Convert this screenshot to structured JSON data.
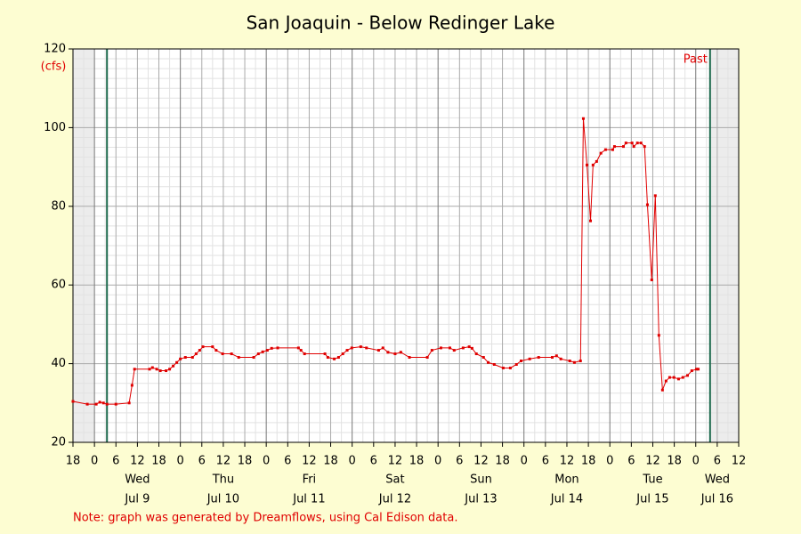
{
  "chart_data": {
    "type": "line",
    "title": "San Joaquin - Below Redinger Lake",
    "ylabel": "(cfs)",
    "note": "Note: graph was generated by Dreamflows, using Cal Edison data.",
    "past_label": "Past",
    "x": [
      -6,
      -2,
      0.5,
      1.5,
      2.5,
      3.5,
      6,
      9.7,
      10.5,
      11.2,
      15.4,
      16.2,
      17.4,
      18.4,
      20,
      21,
      22,
      23,
      24,
      25.4,
      27.4,
      28.4,
      29.4,
      30.3,
      33,
      34,
      35.8,
      38.3,
      40.3,
      44.5,
      45.8,
      47,
      48.3,
      49.5,
      51.2,
      57,
      57.7,
      58.7,
      64.4,
      65.2,
      67,
      68.2,
      69.4,
      70.6,
      71.9,
      74.4,
      76,
      79.4,
      80.6,
      82,
      84,
      85.6,
      88,
      93,
      94.3,
      96.8,
      99.3,
      100.5,
      103,
      104.7,
      105.5,
      106.7,
      108.7,
      110,
      111.7,
      114.2,
      116.2,
      117.9,
      119.2,
      121.6,
      124.1,
      127.9,
      129.1,
      130.3,
      132.8,
      134.1,
      135.8,
      136.6,
      137.6,
      138.6,
      139.3,
      140.3,
      141.5,
      142.8,
      144.8,
      145.3,
      147.8,
      148.5,
      150.2,
      150.7,
      151.7,
      152.7,
      153.7,
      154.5,
      155.7,
      156.7,
      157.7,
      158.7,
      159.7,
      160.7,
      161.9,
      163.2,
      164.4,
      165.7,
      166.9,
      168.2,
      168.7
    ],
    "series": [
      {
        "name": "Flow",
        "color": "#e00000",
        "values": [
          30.4,
          29.7,
          29.7,
          30.2,
          30,
          29.7,
          29.7,
          30,
          34.5,
          38.6,
          38.6,
          39,
          38.6,
          38.2,
          38.2,
          38.6,
          39.4,
          40.3,
          41.2,
          41.6,
          41.6,
          42.5,
          43.4,
          44.3,
          44.3,
          43.4,
          42.5,
          42.5,
          41.6,
          41.6,
          42.5,
          43,
          43.4,
          43.9,
          44,
          44,
          43.4,
          42.5,
          42.5,
          41.6,
          41.2,
          41.6,
          42.5,
          43.4,
          44,
          44.3,
          44,
          43.4,
          44,
          42.9,
          42.5,
          42.9,
          41.6,
          41.6,
          43.4,
          44,
          44,
          43.4,
          44,
          44.3,
          43.9,
          42.5,
          41.6,
          40.3,
          39.8,
          38.9,
          38.9,
          39.8,
          40.7,
          41.2,
          41.6,
          41.6,
          42,
          41.2,
          40.7,
          40.3,
          40.7,
          102.3,
          90.5,
          76.3,
          90.5,
          91.4,
          93.5,
          94.4,
          94.4,
          95.2,
          95.2,
          96.1,
          96.1,
          95.2,
          96.1,
          96.1,
          95.2,
          80.4,
          61.3,
          82.7,
          47.2,
          33.3,
          35.6,
          36.5,
          36.5,
          36.1,
          36.5,
          37,
          38.2,
          38.6,
          38.6
        ]
      }
    ],
    "xlim": [
      -6,
      180
    ],
    "ylim": [
      20,
      120
    ],
    "yticks": [
      20,
      40,
      60,
      80,
      100,
      120
    ],
    "xticks": [
      {
        "value": -6,
        "label": "18"
      },
      {
        "value": 0,
        "label": "0"
      },
      {
        "value": 6,
        "label": "6"
      },
      {
        "value": 12,
        "label": "12"
      },
      {
        "value": 18,
        "label": "18"
      },
      {
        "value": 24,
        "label": "0"
      },
      {
        "value": 30,
        "label": "6"
      },
      {
        "value": 36,
        "label": "12"
      },
      {
        "value": 42,
        "label": "18"
      },
      {
        "value": 48,
        "label": "0"
      },
      {
        "value": 54,
        "label": "6"
      },
      {
        "value": 60,
        "label": "12"
      },
      {
        "value": 66,
        "label": "18"
      },
      {
        "value": 72,
        "label": "0"
      },
      {
        "value": 78,
        "label": "6"
      },
      {
        "value": 84,
        "label": "12"
      },
      {
        "value": 90,
        "label": "18"
      },
      {
        "value": 96,
        "label": "0"
      },
      {
        "value": 102,
        "label": "6"
      },
      {
        "value": 108,
        "label": "12"
      },
      {
        "value": 114,
        "label": "18"
      },
      {
        "value": 120,
        "label": "0"
      },
      {
        "value": 126,
        "label": "6"
      },
      {
        "value": 132,
        "label": "12"
      },
      {
        "value": 138,
        "label": "18"
      },
      {
        "value": 144,
        "label": "0"
      },
      {
        "value": 150,
        "label": "6"
      },
      {
        "value": 156,
        "label": "12"
      },
      {
        "value": 162,
        "label": "18"
      },
      {
        "value": 168,
        "label": "0"
      },
      {
        "value": 174,
        "label": "6"
      },
      {
        "value": 180,
        "label": "12"
      }
    ],
    "day_labels": [
      {
        "value": 12,
        "weekday": "Wed",
        "date": "Jul 9"
      },
      {
        "value": 36,
        "weekday": "Thu",
        "date": "Jul 10"
      },
      {
        "value": 60,
        "weekday": "Fri",
        "date": "Jul 11"
      },
      {
        "value": 84,
        "weekday": "Sat",
        "date": "Jul 12"
      },
      {
        "value": 108,
        "weekday": "Sun",
        "date": "Jul 13"
      },
      {
        "value": 132,
        "weekday": "Mon",
        "date": "Jul 14"
      },
      {
        "value": 156,
        "weekday": "Tue",
        "date": "Jul 15"
      },
      {
        "value": 174,
        "weekday": "Wed",
        "date": "Jul 16"
      }
    ],
    "shaded": [
      [
        -6,
        0
      ],
      [
        172,
        180
      ]
    ],
    "markers": [
      3.5,
      172
    ],
    "grid": true
  }
}
